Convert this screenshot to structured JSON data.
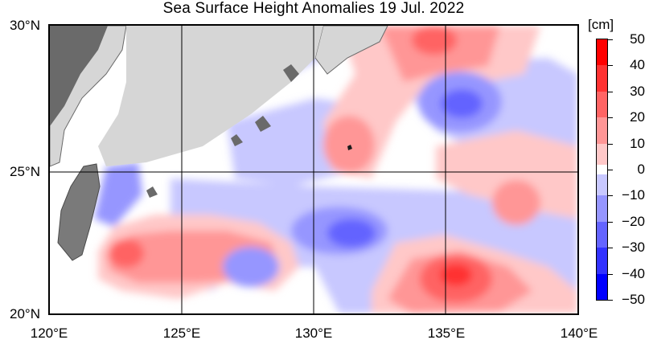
{
  "title": "Sea Surface Height Anomalies  19 Jul. 2022",
  "map": {
    "lat_labels": [
      "30°N",
      "25°N",
      "20°N"
    ],
    "lon_labels": [
      "120°E",
      "125°E",
      "130°E",
      "135°E",
      "140°E"
    ],
    "land_color": "#d6d6d6",
    "coast_color": "#6a6a6a"
  },
  "colorbar": {
    "unit": "[cm]",
    "labels": [
      "50",
      "40",
      "30",
      "20",
      "10",
      "0",
      "−10",
      "−20",
      "−30",
      "−40",
      "−50"
    ],
    "colors": [
      "#ff0000",
      "#ff3232",
      "#ff6464",
      "#ff9696",
      "#ffc8c8",
      "#ffffff",
      "#c8c8ff",
      "#9696ff",
      "#6464ff",
      "#3232ff",
      "#0000ff"
    ]
  }
}
